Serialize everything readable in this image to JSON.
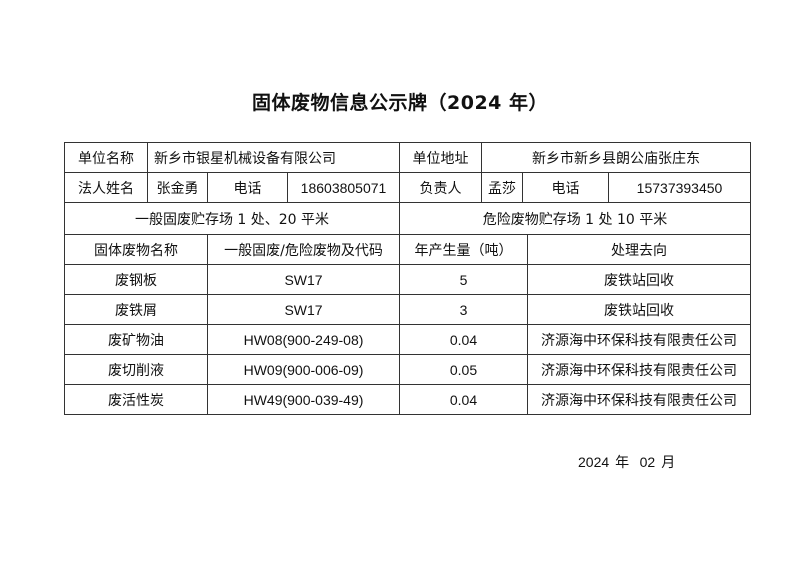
{
  "title": "固体废物信息公示牌（2024 年）",
  "info": {
    "unit_name_label": "单位名称",
    "unit_name": "新乡市银星机械设备有限公司",
    "unit_address_label": "单位地址",
    "unit_address": "新乡市新乡县朗公庙张庄东",
    "legal_person_label": "法人姓名",
    "legal_person": "张金勇",
    "phone_label": "电话",
    "legal_phone": "18603805071",
    "responsible_label": "负责人",
    "responsible": "孟莎",
    "responsible_phone": "15737393450",
    "general_storage": "一般固废贮存场 1 处、20 平米",
    "hazardous_storage": "危险废物贮存场 1 处 10 平米"
  },
  "waste_table": {
    "headers": [
      "固体废物名称",
      "一般固废/危险废物及代码",
      "年产生量（吨）",
      "处理去向"
    ],
    "rows": [
      [
        "废钢板",
        "SW17",
        "5",
        "废铁站回收"
      ],
      [
        "废铁屑",
        "SW17",
        "3",
        "废铁站回收"
      ],
      [
        "废矿物油",
        "HW08(900-249-08)",
        "0.04",
        "济源海中环保科技有限责任公司"
      ],
      [
        "废切削液",
        "HW09(900-006-09)",
        "0.05",
        "济源海中环保科技有限责任公司"
      ],
      [
        "废活性炭",
        "HW49(900-039-49)",
        "0.04",
        "济源海中环保科技有限责任公司"
      ]
    ]
  },
  "date": {
    "year": "2024",
    "year_unit": "年",
    "month": "02",
    "month_unit": "月"
  }
}
